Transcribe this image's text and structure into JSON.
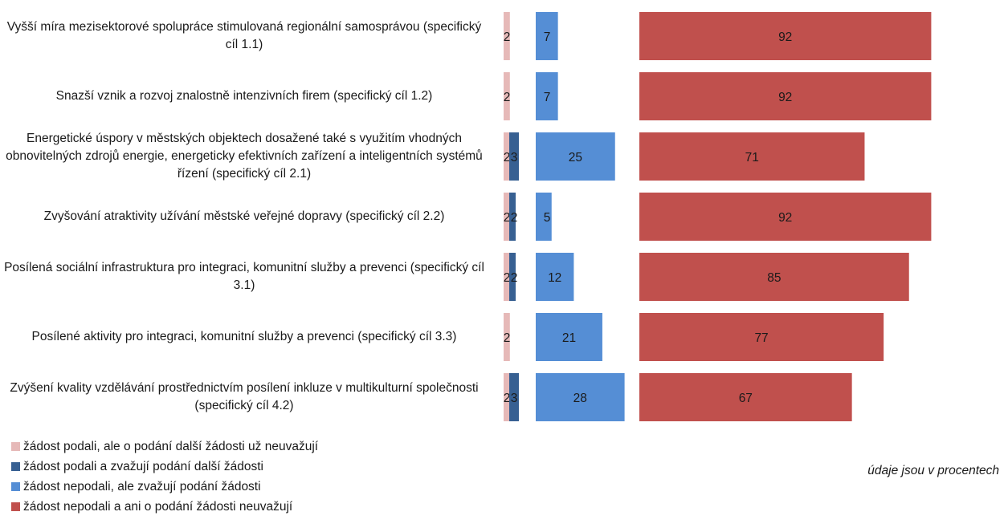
{
  "chart_data": {
    "type": "bar",
    "orientation": "horizontal",
    "layout": "panels-per-series",
    "categories": [
      "Vyšší míra mezisektorové spolupráce stimulovaná regionální samosprávou (specifický cíl 1.1)",
      "Snazší vznik a rozvoj znalostně intenzivních firem (specifický cíl 1.2)",
      "Energetické úspory v městských objektech dosažené také s využitím vhodných obnovitelných zdrojů energie, energeticky efektivních zařízení a inteligentních systémů řízení (specifický cíl 2.1)",
      "Zvyšování atraktivity užívání městské veřejné dopravy (specifický cíl 2.2)",
      "Posílená sociální infrastruktura pro integraci, komunitní služby a prevenci (specifický cíl 3.1)",
      "Posílené aktivity pro integraci, komunitní služby a prevenci (specifický cíl 3.3)",
      "Zvýšení kvality vzdělávání prostřednictvím posílení inkluze v multikulturní společnosti (specifický cíl 4.2)"
    ],
    "series": [
      {
        "name": "žádost podali, ale o podání další žádosti už neuvažují",
        "color": "#e6b9b8",
        "values": [
          2,
          2,
          2,
          2,
          2,
          2,
          2
        ]
      },
      {
        "name": "žádost podali a zvažují podání další žádosti",
        "color": "#376092",
        "values": [
          0,
          0,
          3,
          2,
          2,
          0,
          3
        ]
      },
      {
        "name": "žádost nepodali, ale zvažují podání žádosti",
        "color": "#558ed5",
        "values": [
          7,
          7,
          25,
          5,
          12,
          21,
          28
        ]
      },
      {
        "name": "žádost nepodali a ani o podání žádosti neuvažují",
        "color": "#c0504d",
        "values": [
          92,
          92,
          71,
          92,
          85,
          77,
          67
        ]
      }
    ],
    "data_labels": true,
    "legend_position": "bottom-left",
    "grid": false,
    "unit_note": "údaje jsou v procentech"
  }
}
